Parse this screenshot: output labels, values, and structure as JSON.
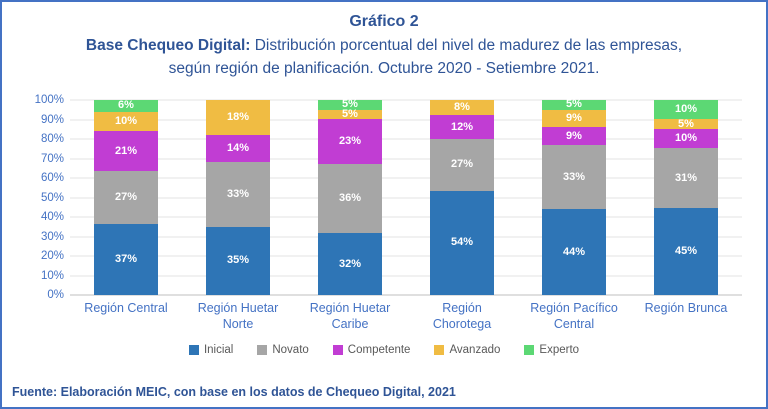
{
  "header": {
    "title": "Gráfico 2",
    "subtitle_bold": "Base Chequeo Digital:",
    "subtitle_rest": " Distribución porcentual del nivel de madurez de las empresas, según región de planificación. Octubre 2020 - Setiembre 2021."
  },
  "footer": {
    "source": "Fuente: Elaboración MEIC, con base en los datos de Chequeo Digital, 2021"
  },
  "colors": {
    "title_blue": "#2F5496",
    "axis_label_blue": "#4472C4",
    "legend_text_gray": "#595959",
    "gridline": "#E3E3E3",
    "axis_line": "#BFBFBF",
    "figure_border": "#4472C4"
  },
  "chart_data": {
    "type": "bar",
    "stacked": true,
    "title": "Gráfico 2",
    "subtitle": "Base Chequeo Digital: Distribución porcentual del nivel de madurez de las empresas, según región de planificación. Octubre 2020 - Setiembre 2021.",
    "categories": [
      "Región Central",
      "Región Huetar Norte",
      "Región Huetar Caribe",
      "Región Chorotega",
      "Región Pacífico Central",
      "Región Brunca"
    ],
    "series": [
      {
        "name": "Inicial",
        "color": "#2E75B6",
        "values": [
          37,
          35,
          32,
          54,
          44,
          45
        ]
      },
      {
        "name": "Novato",
        "color": "#A6A6A6",
        "values": [
          27,
          33,
          36,
          27,
          33,
          31
        ]
      },
      {
        "name": "Competente",
        "color": "#C13DD3",
        "values": [
          21,
          14,
          23,
          12,
          9,
          10
        ]
      },
      {
        "name": "Avanzado",
        "color": "#F0BC43",
        "values": [
          10,
          18,
          5,
          8,
          9,
          5
        ]
      },
      {
        "name": "Experto",
        "color": "#5CD874",
        "values": [
          6,
          0,
          5,
          0,
          5,
          10
        ]
      }
    ],
    "value_suffix": "%",
    "y_ticks_top_to_bottom": [
      "100%",
      "90%",
      "80%",
      "70%",
      "60%",
      "50%",
      "40%",
      "30%",
      "20%",
      "10%",
      "0%"
    ],
    "ylim": [
      0,
      100
    ],
    "grid": true,
    "legend_position": "bottom"
  }
}
